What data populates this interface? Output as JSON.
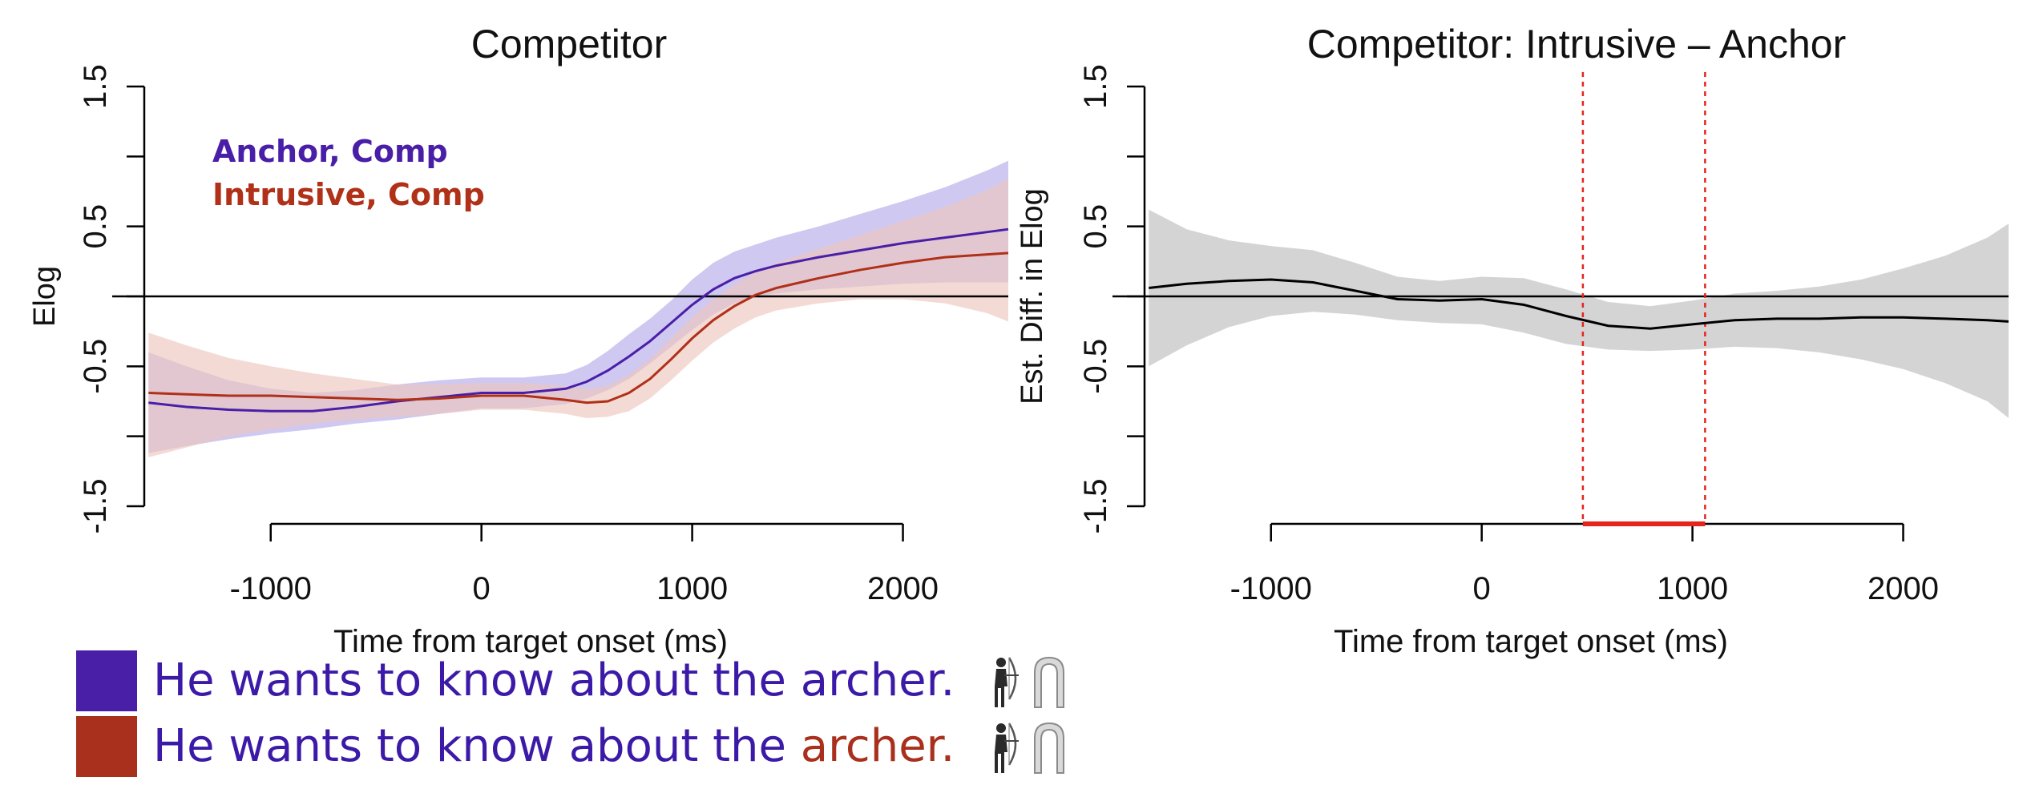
{
  "chart_data": [
    {
      "type": "line",
      "title": "Competitor",
      "xlabel": "Time from target onset (ms)",
      "ylabel": "Elog",
      "xlim": [
        -1600,
        2500
      ],
      "ylim": [
        -1.5,
        1.5
      ],
      "xticks": [
        -1000,
        0,
        1000,
        2000
      ],
      "xtick_labels": [
        "-1000",
        "0",
        "1000",
        "2000"
      ],
      "yticks": [
        -1.5,
        -1.0,
        -0.5,
        0.0,
        0.5,
        1.0,
        1.5
      ],
      "ytick_labels": [
        "-1.5",
        "",
        "-0.5",
        "",
        "0.5",
        "",
        "1.5"
      ],
      "grid": false,
      "reference_line_y": 0,
      "legend_placement": "top-left",
      "series": [
        {
          "name": "Anchor, Comp",
          "color": "#4a1fa8",
          "band_color": "#b5aae8",
          "x": [
            -1580,
            -1400,
            -1200,
            -1000,
            -800,
            -600,
            -400,
            -200,
            0,
            200,
            400,
            500,
            600,
            700,
            800,
            900,
            1000,
            1100,
            1200,
            1300,
            1400,
            1600,
            1800,
            2000,
            2200,
            2400,
            2500
          ],
          "y": [
            -0.76,
            -0.79,
            -0.81,
            -0.82,
            -0.82,
            -0.79,
            -0.75,
            -0.72,
            -0.69,
            -0.69,
            -0.66,
            -0.61,
            -0.53,
            -0.43,
            -0.32,
            -0.19,
            -0.06,
            0.05,
            0.13,
            0.18,
            0.22,
            0.28,
            0.33,
            0.38,
            0.42,
            0.46,
            0.48
          ],
          "lower": [
            -1.12,
            -1.07,
            -1.02,
            -0.98,
            -0.95,
            -0.91,
            -0.88,
            -0.84,
            -0.8,
            -0.8,
            -0.77,
            -0.73,
            -0.67,
            -0.59,
            -0.48,
            -0.36,
            -0.24,
            -0.13,
            -0.05,
            0.0,
            0.02,
            0.05,
            0.07,
            0.09,
            0.1,
            0.1,
            0.1
          ],
          "upper": [
            -0.4,
            -0.5,
            -0.6,
            -0.66,
            -0.69,
            -0.67,
            -0.63,
            -0.6,
            -0.58,
            -0.58,
            -0.55,
            -0.49,
            -0.39,
            -0.27,
            -0.16,
            -0.03,
            0.12,
            0.24,
            0.32,
            0.37,
            0.42,
            0.5,
            0.59,
            0.68,
            0.78,
            0.9,
            0.97
          ]
        },
        {
          "name": "Intrusive, Comp",
          "color": "#b03018",
          "band_color": "#ecc6bf",
          "x": [
            -1580,
            -1400,
            -1200,
            -1000,
            -800,
            -600,
            -400,
            -200,
            0,
            200,
            400,
            500,
            600,
            700,
            800,
            900,
            1000,
            1100,
            1200,
            1300,
            1400,
            1600,
            1800,
            2000,
            2200,
            2400,
            2500
          ],
          "y": [
            -0.69,
            -0.7,
            -0.71,
            -0.71,
            -0.72,
            -0.73,
            -0.74,
            -0.73,
            -0.71,
            -0.71,
            -0.74,
            -0.76,
            -0.75,
            -0.69,
            -0.59,
            -0.45,
            -0.3,
            -0.17,
            -0.07,
            0.01,
            0.06,
            0.13,
            0.19,
            0.24,
            0.28,
            0.3,
            0.31
          ],
          "lower": [
            -1.15,
            -1.08,
            -1.0,
            -0.95,
            -0.91,
            -0.88,
            -0.86,
            -0.84,
            -0.81,
            -0.81,
            -0.84,
            -0.87,
            -0.86,
            -0.82,
            -0.73,
            -0.6,
            -0.46,
            -0.33,
            -0.23,
            -0.15,
            -0.1,
            -0.05,
            -0.02,
            -0.02,
            -0.05,
            -0.12,
            -0.18
          ],
          "upper": [
            -0.26,
            -0.35,
            -0.44,
            -0.5,
            -0.55,
            -0.59,
            -0.63,
            -0.63,
            -0.62,
            -0.62,
            -0.64,
            -0.66,
            -0.64,
            -0.56,
            -0.45,
            -0.3,
            -0.15,
            -0.02,
            0.08,
            0.17,
            0.24,
            0.34,
            0.44,
            0.54,
            0.64,
            0.76,
            0.84
          ]
        }
      ]
    },
    {
      "type": "line",
      "title": "Competitor: Intrusive – Anchor",
      "xlabel": "Time from target onset (ms)",
      "ylabel": "Est. Diff. in Elog",
      "xlim": [
        -1600,
        2500
      ],
      "ylim": [
        -1.5,
        1.5
      ],
      "xticks": [
        -1000,
        0,
        1000,
        2000
      ],
      "xtick_labels": [
        "-1000",
        "0",
        "1000",
        "2000"
      ],
      "yticks": [
        -1.5,
        -1.0,
        -0.5,
        0.0,
        0.5,
        1.0,
        1.5
      ],
      "ytick_labels": [
        "-1.5",
        "",
        "-0.5",
        "",
        "0.5",
        "",
        "1.5"
      ],
      "grid": false,
      "reference_line_y": 0,
      "significant_window": [
        480,
        1060
      ],
      "series": [
        {
          "color": "#000000",
          "band_color": "#cfcfcf",
          "x": [
            -1580,
            -1400,
            -1200,
            -1000,
            -800,
            -600,
            -400,
            -200,
            0,
            200,
            400,
            600,
            800,
            1000,
            1200,
            1400,
            1600,
            1800,
            2000,
            2200,
            2400,
            2500
          ],
          "y": [
            0.06,
            0.09,
            0.11,
            0.12,
            0.1,
            0.04,
            -0.02,
            -0.03,
            -0.02,
            -0.06,
            -0.14,
            -0.21,
            -0.23,
            -0.2,
            -0.17,
            -0.16,
            -0.16,
            -0.15,
            -0.15,
            -0.16,
            -0.17,
            -0.18
          ],
          "lower": [
            -0.5,
            -0.35,
            -0.22,
            -0.14,
            -0.11,
            -0.13,
            -0.17,
            -0.19,
            -0.2,
            -0.26,
            -0.34,
            -0.38,
            -0.39,
            -0.38,
            -0.36,
            -0.37,
            -0.4,
            -0.45,
            -0.52,
            -0.62,
            -0.75,
            -0.87
          ],
          "upper": [
            0.62,
            0.48,
            0.4,
            0.36,
            0.33,
            0.24,
            0.14,
            0.11,
            0.14,
            0.13,
            0.05,
            -0.04,
            -0.07,
            -0.03,
            0.02,
            0.04,
            0.07,
            0.12,
            0.2,
            0.29,
            0.42,
            0.52
          ]
        }
      ]
    }
  ],
  "legend": {
    "row1": {
      "text": "He wants to know about the archer.",
      "swatch": "#4a1fa8"
    },
    "row2": {
      "prefix": "He wants to know about the ",
      "highlight": "archer.",
      "swatch": "#a8301c",
      "highlight_color": "#a8301c"
    },
    "icons": [
      "archer-icon",
      "arch-icon"
    ]
  }
}
